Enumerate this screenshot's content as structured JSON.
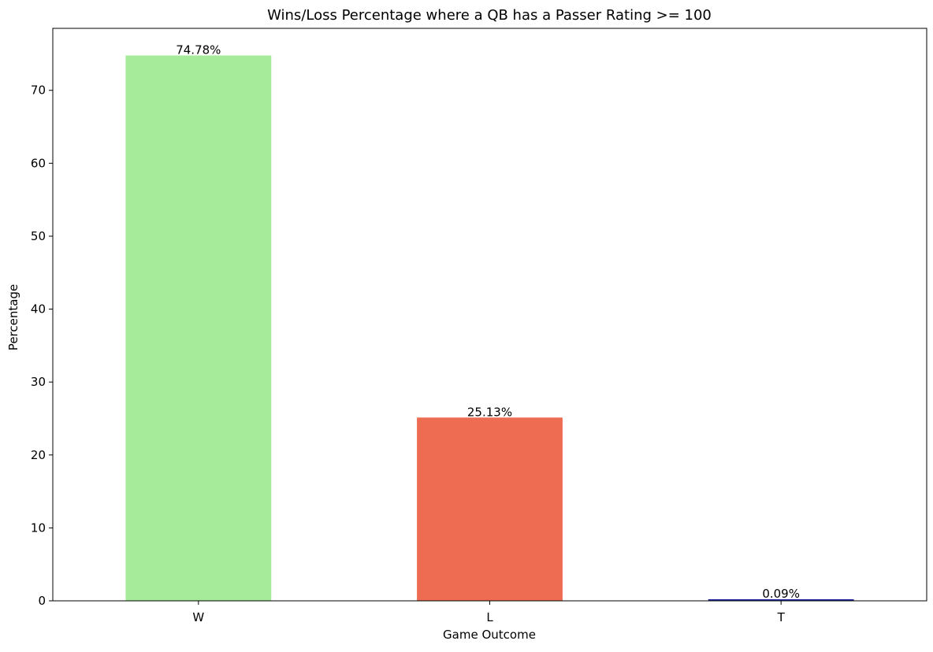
{
  "chart_data": {
    "type": "bar",
    "title": "Wins/Loss Percentage where a QB has a Passer Rating >= 100",
    "xlabel": "Game Outcome",
    "ylabel": "Percentage",
    "categories": [
      "W",
      "L",
      "T"
    ],
    "values": [
      74.78,
      25.13,
      0.09
    ],
    "data_labels": [
      "74.78%",
      "25.13%",
      "0.09%"
    ],
    "colors": [
      "#a6eb99",
      "#ee6c52",
      "#1f2a9c"
    ],
    "ylim": [
      0,
      78.5
    ],
    "yticks": [
      0,
      10,
      20,
      30,
      40,
      50,
      60,
      70
    ],
    "grid": false,
    "legend": "none"
  }
}
